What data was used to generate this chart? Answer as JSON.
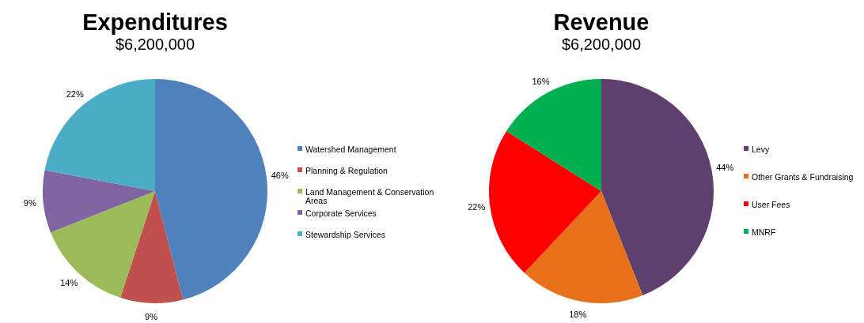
{
  "chart_data": [
    {
      "type": "pie",
      "title": "Expenditures",
      "subtitle": "$6,200,000",
      "categories": [
        "Watershed Management",
        "Planning & Regulation",
        "Land Management & Conservation Areas",
        "Corporate Services",
        "Stewardship Services"
      ],
      "values": [
        46,
        9,
        14,
        9,
        22
      ],
      "value_labels": [
        "46%",
        "9%",
        "14%",
        "9%",
        "22%"
      ],
      "colors": [
        "#4f81bd",
        "#c0504d",
        "#9bbb59",
        "#8064a2",
        "#4bacc6"
      ],
      "legend": "right"
    },
    {
      "type": "pie",
      "title": "Revenue",
      "subtitle": "$6,200,000",
      "categories": [
        "Levy",
        "Other Grants & Fundraising",
        "User Fees",
        "MNRF"
      ],
      "values": [
        44,
        18,
        22,
        16
      ],
      "value_labels": [
        "44%",
        "18%",
        "22%",
        "16%"
      ],
      "colors": [
        "#5e3f6e",
        "#e8701a",
        "#ff0000",
        "#00b050"
      ],
      "legend": "right"
    }
  ]
}
